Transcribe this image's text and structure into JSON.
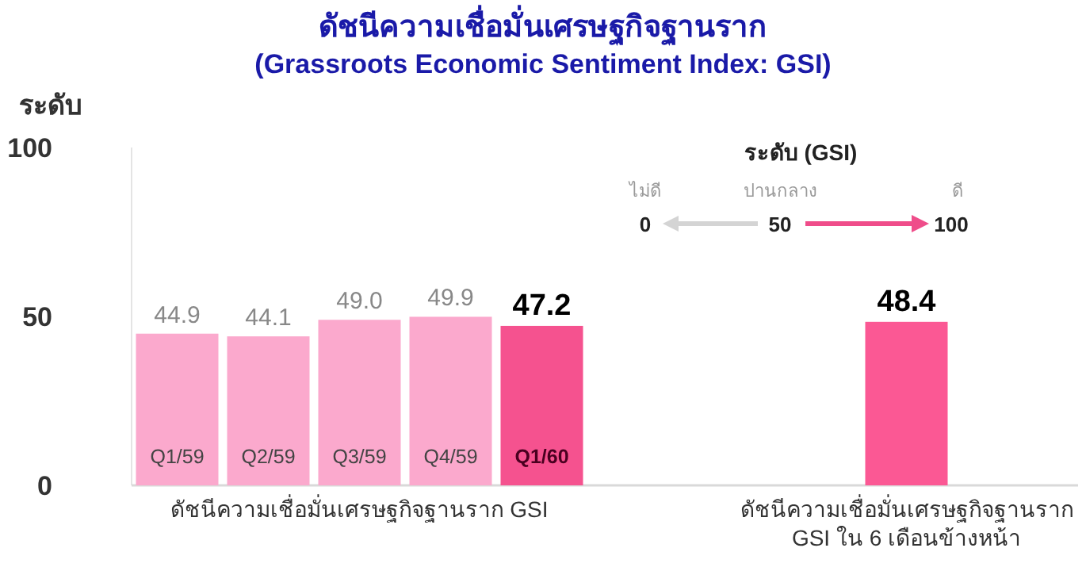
{
  "chart_data": {
    "type": "bar",
    "title": "ดัชนีความเชื่อมั่นเศรษฐกิจฐานราก",
    "subtitle": "(Grassroots Economic Sentiment Index: GSI)",
    "ylabel": "ระดับ",
    "categories": [
      "Q1/59",
      "Q2/59",
      "Q3/59",
      "Q4/59",
      "Q1/60",
      null,
      null,
      null,
      null
    ],
    "values": [
      44.9,
      44.1,
      49.0,
      49.9,
      47.2,
      null,
      null,
      null,
      48.4
    ],
    "colors": [
      "#fba9cd",
      "#fba9cd",
      "#fba9cd",
      "#fba9cd",
      "#f5528f",
      null,
      null,
      null,
      "#fb5894"
    ],
    "value_labels": [
      "44.9",
      "44.1",
      "49.0",
      "49.9",
      "47.2",
      null,
      null,
      null,
      "48.4"
    ],
    "ylim": [
      0,
      100
    ],
    "yticks": [
      0,
      50,
      100
    ],
    "grid": false,
    "annotations": [
      "ดัชนีความเชื่อมั่นเศรษฐกิจฐานราก GSI",
      "ดัชนีความเชื่อมั่นเศรษฐกิจฐานราก GSI ใน 6 เดือนข้างหน้า",
      "ระดับ (GSI)",
      "ไม่ดี",
      "ปานกลาง",
      "ดี",
      "0",
      "50",
      "100"
    ]
  }
}
